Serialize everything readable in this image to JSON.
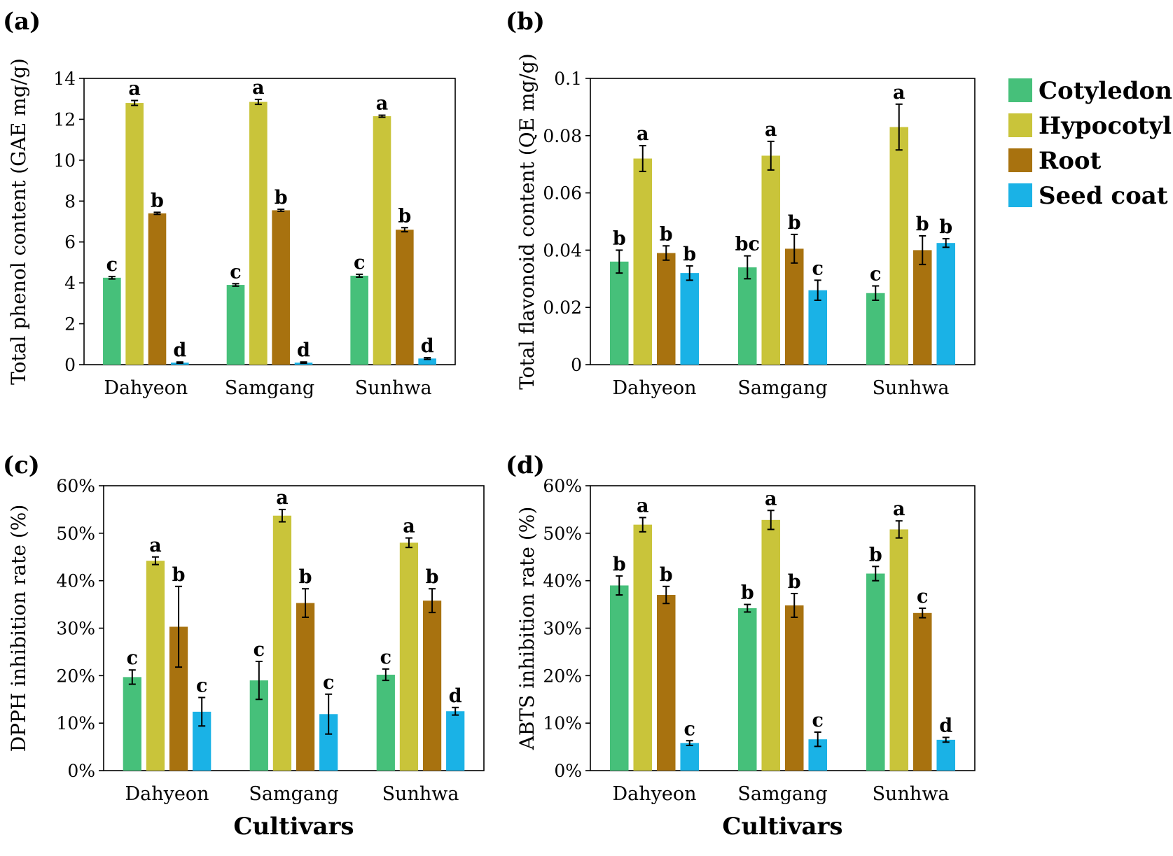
{
  "colors": {
    "Cotyledon": "#46c07a",
    "Hypocotyl": "#c9c43a",
    "Root": "#a8720f",
    "Seed coat": "#1ab2e6"
  },
  "legend": [
    "Cotyledon",
    "Hypocotyl",
    "Root",
    "Seed coat"
  ],
  "chart_data": [
    {
      "type": "bar",
      "panel": "(a)",
      "ylabel": "Total phenol content (GAE mg/g)",
      "xlabel": "",
      "ylim": [
        0,
        14
      ],
      "yticks": [
        0,
        2,
        4,
        6,
        8,
        10,
        12,
        14
      ],
      "ytick_labels": [
        "0",
        "2",
        "4",
        "6",
        "8",
        "10",
        "12",
        "14"
      ],
      "categories": [
        "Dahyeon",
        "Samgang",
        "Sunhwa"
      ],
      "series": [
        {
          "name": "Cotyledon",
          "values": [
            4.25,
            3.9,
            4.35
          ],
          "errors": [
            0.06,
            0.06,
            0.07
          ],
          "letters": [
            "c",
            "c",
            "c"
          ]
        },
        {
          "name": "Hypocotyl",
          "values": [
            12.8,
            12.85,
            12.15
          ],
          "errors": [
            0.12,
            0.12,
            0.05
          ],
          "letters": [
            "a",
            "a",
            "a"
          ]
        },
        {
          "name": "Root",
          "values": [
            7.4,
            7.55,
            6.6
          ],
          "errors": [
            0.05,
            0.05,
            0.1
          ],
          "letters": [
            "b",
            "b",
            "b"
          ]
        },
        {
          "name": "Seed coat",
          "values": [
            0.1,
            0.1,
            0.3
          ],
          "errors": [
            0.03,
            0.03,
            0.04
          ],
          "letters": [
            "d",
            "d",
            "d"
          ]
        }
      ]
    },
    {
      "type": "bar",
      "panel": "(b)",
      "ylabel": "Total flavonoid content (QE mg/g)",
      "xlabel": "",
      "ylim": [
        0,
        0.1
      ],
      "yticks": [
        0,
        0.02,
        0.04,
        0.06,
        0.08,
        0.1
      ],
      "ytick_labels": [
        "0",
        "0.02",
        "0.04",
        "0.06",
        "0.08",
        "0.1"
      ],
      "categories": [
        "Dahyeon",
        "Samgang",
        "Sunhwa"
      ],
      "series": [
        {
          "name": "Cotyledon",
          "values": [
            0.036,
            0.034,
            0.025
          ],
          "errors": [
            0.004,
            0.004,
            0.0025
          ],
          "letters": [
            "b",
            "bc",
            "c"
          ]
        },
        {
          "name": "Hypocotyl",
          "values": [
            0.072,
            0.073,
            0.083
          ],
          "errors": [
            0.0045,
            0.005,
            0.008
          ],
          "letters": [
            "a",
            "a",
            "a"
          ]
        },
        {
          "name": "Root",
          "values": [
            0.039,
            0.0405,
            0.04
          ],
          "errors": [
            0.0025,
            0.005,
            0.005
          ],
          "letters": [
            "b",
            "b",
            "b"
          ]
        },
        {
          "name": "Seed coat",
          "values": [
            0.032,
            0.026,
            0.0425
          ],
          "errors": [
            0.0025,
            0.0035,
            0.0015
          ],
          "letters": [
            "b",
            "c",
            "b"
          ]
        }
      ]
    },
    {
      "type": "bar",
      "panel": "(c)",
      "ylabel": "DPPH inhibition rate (%)",
      "xlabel": "Cultivars",
      "ylim": [
        0,
        60
      ],
      "yticks": [
        0,
        10,
        20,
        30,
        40,
        50,
        60
      ],
      "ytick_labels": [
        "0%",
        "10%",
        "20%",
        "30%",
        "40%",
        "50%",
        "60%"
      ],
      "categories": [
        "Dahyeon",
        "Samgang",
        "Sunhwa"
      ],
      "series": [
        {
          "name": "Cotyledon",
          "values": [
            19.7,
            19,
            20.2
          ],
          "errors": [
            1.5,
            4,
            1.2
          ],
          "letters": [
            "c",
            "c",
            "c"
          ]
        },
        {
          "name": "Hypocotyl",
          "values": [
            44.2,
            53.7,
            48
          ],
          "errors": [
            0.8,
            1.3,
            1
          ],
          "letters": [
            "a",
            "a",
            "a"
          ]
        },
        {
          "name": "Root",
          "values": [
            30.3,
            35.3,
            35.8
          ],
          "errors": [
            8.5,
            3,
            2.5
          ],
          "letters": [
            "b",
            "b",
            "b"
          ]
        },
        {
          "name": "Seed coat",
          "values": [
            12.4,
            11.9,
            12.5
          ],
          "errors": [
            3,
            4.2,
            0.8
          ],
          "letters": [
            "c",
            "c",
            "d"
          ]
        }
      ]
    },
    {
      "type": "bar",
      "panel": "(d)",
      "ylabel": "ABTS inhibition rate (%)",
      "xlabel": "Cultivars",
      "ylim": [
        0,
        60
      ],
      "yticks": [
        0,
        10,
        20,
        30,
        40,
        50,
        60
      ],
      "ytick_labels": [
        "0%",
        "10%",
        "20%",
        "30%",
        "40%",
        "50%",
        "60%"
      ],
      "categories": [
        "Dahyeon",
        "Samgang",
        "Sunhwa"
      ],
      "series": [
        {
          "name": "Cotyledon",
          "values": [
            39,
            34.2,
            41.5
          ],
          "errors": [
            2,
            0.8,
            1.5
          ],
          "letters": [
            "b",
            "b",
            "b"
          ]
        },
        {
          "name": "Hypocotyl",
          "values": [
            51.8,
            52.8,
            50.8
          ],
          "errors": [
            1.5,
            2,
            1.8
          ],
          "letters": [
            "a",
            "a",
            "a"
          ]
        },
        {
          "name": "Root",
          "values": [
            37,
            34.8,
            33.2
          ],
          "errors": [
            1.8,
            2.5,
            1
          ],
          "letters": [
            "b",
            "b",
            "c"
          ]
        },
        {
          "name": "Seed coat",
          "values": [
            5.8,
            6.6,
            6.5
          ],
          "errors": [
            0.5,
            1.5,
            0.5
          ],
          "letters": [
            "c",
            "c",
            "d"
          ]
        }
      ]
    }
  ]
}
